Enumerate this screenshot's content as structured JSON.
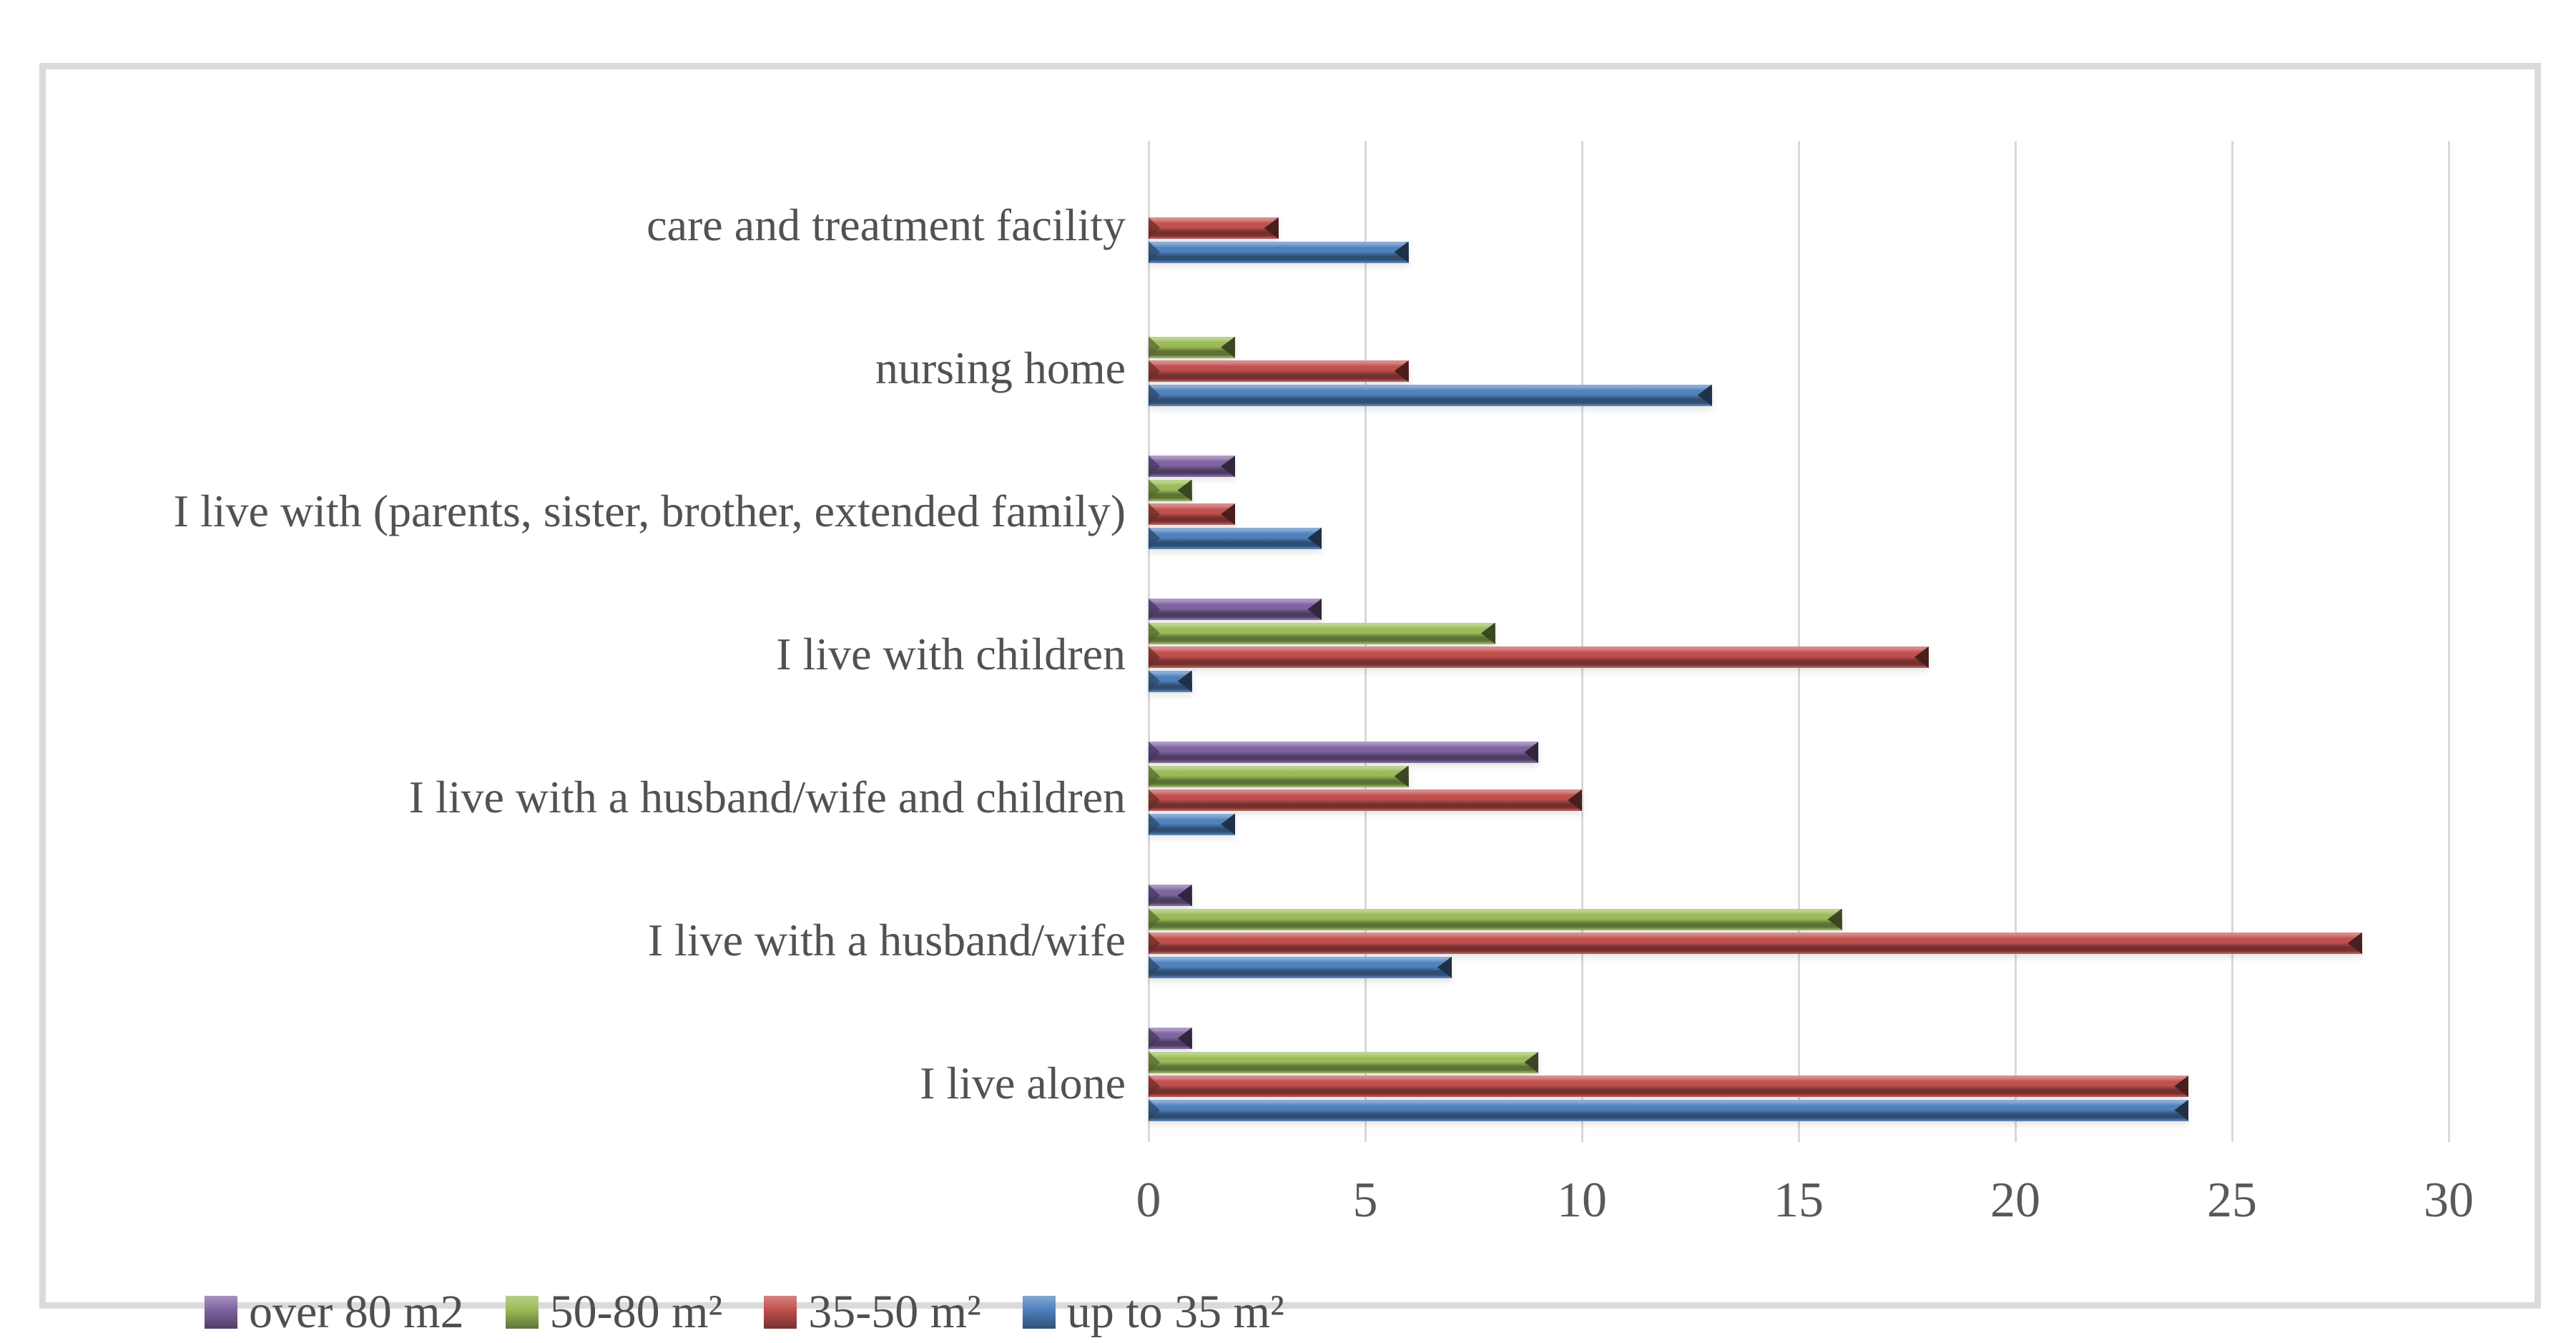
{
  "chart_data": {
    "type": "bar",
    "orientation": "horizontal",
    "title": "",
    "categories": [
      "care and treatment facility",
      "nursing home",
      "I live with (parents, sister, brother, extended family)",
      "I live with children",
      "I live with a husband/wife and children",
      "I live with a husband/wife",
      "I live alone"
    ],
    "series": [
      {
        "name": "over 80 m2",
        "color": "#8064A2",
        "values": [
          null,
          null,
          2,
          4,
          9,
          1,
          1
        ]
      },
      {
        "name": "50-80 m²",
        "color": "#9BBB59",
        "values": [
          null,
          2,
          1,
          8,
          6,
          16,
          9
        ]
      },
      {
        "name": "35-50 m²",
        "color": "#C0504D",
        "values": [
          3,
          6,
          2,
          18,
          10,
          28,
          24
        ]
      },
      {
        "name": "up to 35 m²",
        "color": "#4F81BD",
        "values": [
          6,
          13,
          4,
          1,
          2,
          7,
          24
        ]
      }
    ],
    "x_axis": {
      "ticks": [
        "0",
        "5",
        "10",
        "15",
        "20",
        "25",
        "30"
      ],
      "range": [
        0,
        32.5
      ]
    },
    "grid": "vertical",
    "gridline_color": "#d9d9d9",
    "legend_position": "bottom-left",
    "bar_order_top_to_bottom": [
      "over 80 m2",
      "50-80 m²",
      "35-50 m²",
      "up to 35 m²"
    ]
  },
  "frame": {
    "border_color": "#dbdbdb"
  }
}
